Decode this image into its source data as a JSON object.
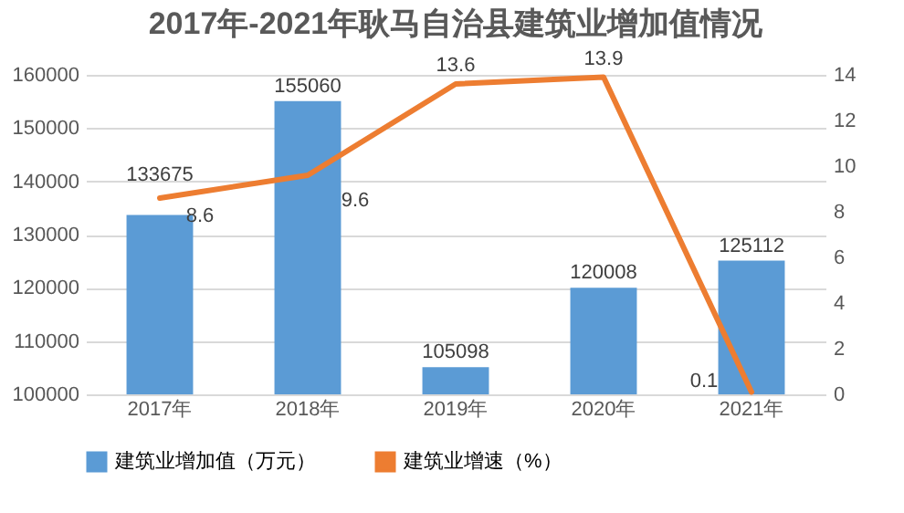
{
  "chart_data": {
    "type": "bar",
    "title": "2017年-2021年耿马自治县建筑业增加值情况",
    "categories": [
      "2017年",
      "2018年",
      "2019年",
      "2020年",
      "2021年"
    ],
    "series": [
      {
        "name": "建筑业增加值（万元）",
        "color": "#5b9bd5",
        "values": [
          133675,
          155060,
          105098,
          120008,
          125112
        ]
      },
      {
        "name": "建筑业增速（%）",
        "type": "line",
        "axis": "y2",
        "color": "#ed7d31",
        "values": [
          8.6,
          9.6,
          13.6,
          13.9,
          0.1
        ]
      }
    ],
    "ylim": [
      100000,
      160000
    ],
    "yticks": [
      100000,
      110000,
      120000,
      130000,
      140000,
      150000,
      160000
    ],
    "y2lim": [
      0,
      14
    ],
    "y2ticks": [
      0,
      2,
      4,
      6,
      8,
      10,
      12,
      14
    ],
    "data_labels": true,
    "grid": "y",
    "legend": "bottom",
    "marker": "none"
  }
}
